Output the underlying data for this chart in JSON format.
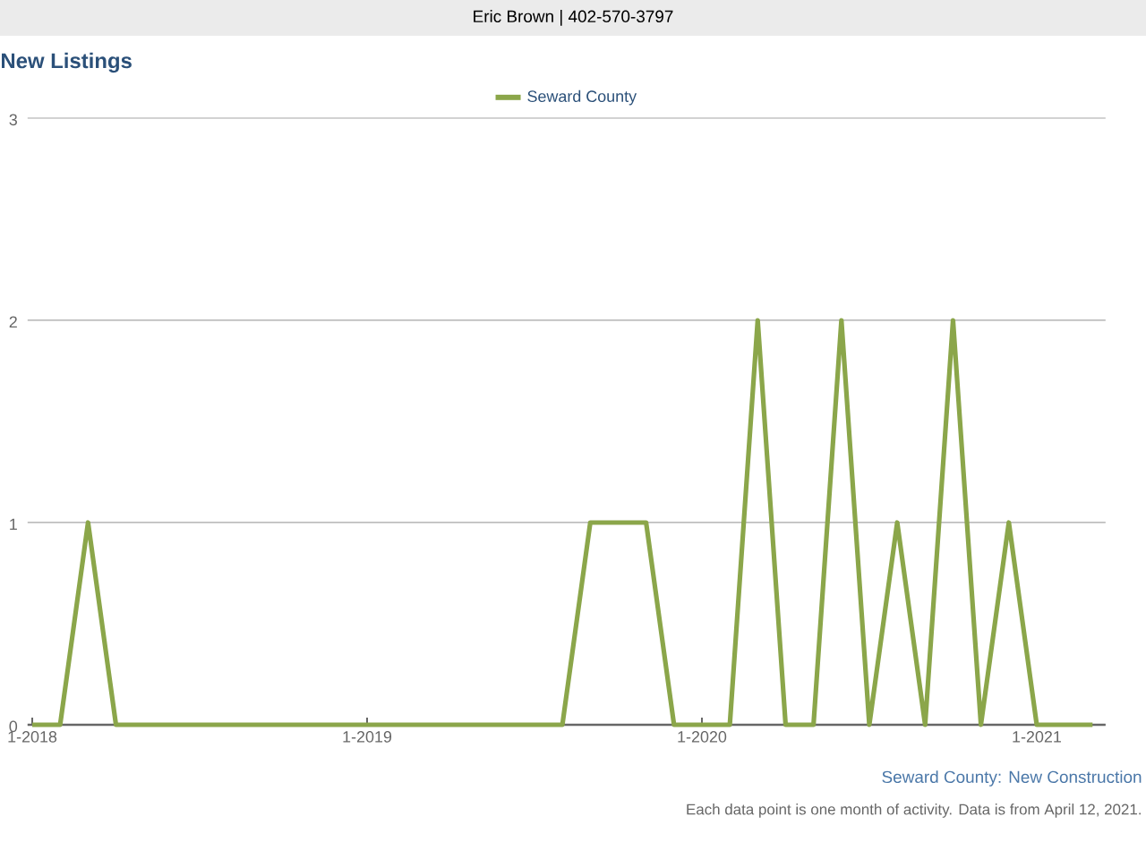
{
  "chart_data": {
    "type": "line",
    "subtitle": "Eric Brown | 402-570-3797",
    "title": "New Listings",
    "x": [
      "2018-01",
      "2018-02",
      "2018-03",
      "2018-04",
      "2018-05",
      "2018-06",
      "2018-07",
      "2018-08",
      "2018-09",
      "2018-10",
      "2018-11",
      "2018-12",
      "2019-01",
      "2019-02",
      "2019-03",
      "2019-04",
      "2019-05",
      "2019-06",
      "2019-07",
      "2019-08",
      "2019-09",
      "2019-10",
      "2019-11",
      "2019-12",
      "2020-01",
      "2020-02",
      "2020-03",
      "2020-04",
      "2020-05",
      "2020-06",
      "2020-07",
      "2020-08",
      "2020-09",
      "2020-10",
      "2020-11",
      "2020-12",
      "2021-01",
      "2021-02",
      "2021-03"
    ],
    "series": [
      {
        "name": "Seward County",
        "color": "#8ba64a",
        "values": [
          0,
          0,
          1,
          0,
          0,
          0,
          0,
          0,
          0,
          0,
          0,
          0,
          0,
          0,
          0,
          0,
          0,
          0,
          0,
          0,
          1,
          1,
          1,
          0,
          0,
          0,
          2,
          0,
          0,
          2,
          0,
          1,
          0,
          2,
          0,
          1,
          0,
          0,
          0
        ]
      }
    ],
    "xlim": [
      "2017-12-26",
      "2021-03-15"
    ],
    "xticks": [
      {
        "value": "2018-01",
        "label": "1-2018"
      },
      {
        "value": "2019-01",
        "label": "1-2019"
      },
      {
        "value": "2020-01",
        "label": "1-2020"
      },
      {
        "value": "2021-01",
        "label": "1-2021"
      }
    ],
    "ylim": [
      0,
      3
    ],
    "yticks": [
      0,
      1,
      2,
      3
    ],
    "grid": "y",
    "legend": "top",
    "marker": "none",
    "line_style": "solid",
    "annotations": [
      "Seward County: New Construction",
      "Each data point is one month of activity. Data is from April 12, 2021."
    ]
  }
}
